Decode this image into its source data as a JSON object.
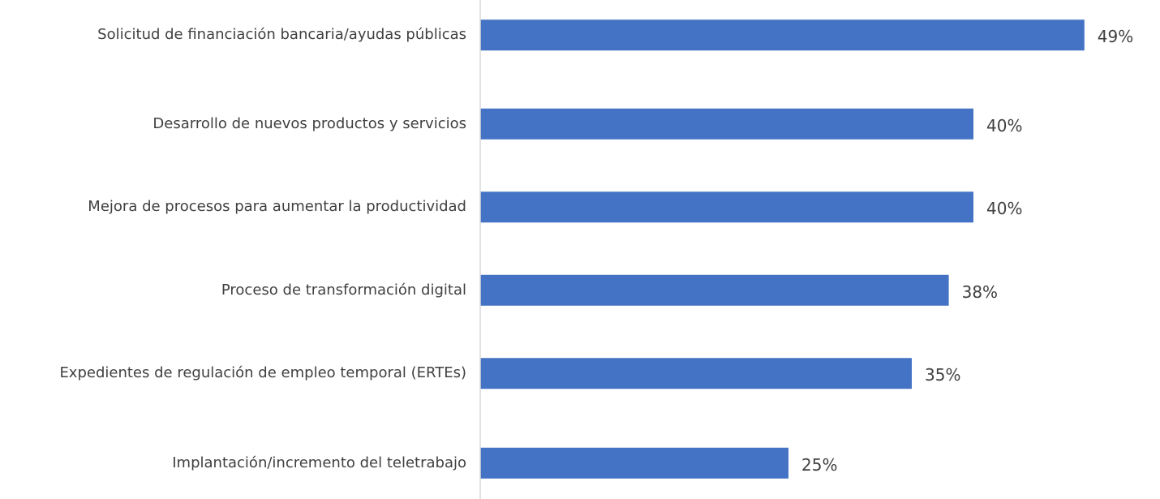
{
  "chart_data": {
    "type": "bar",
    "orientation": "horizontal",
    "categories": [
      "Solicitud de financiación bancaria/ayudas públicas",
      "Desarrollo de nuevos productos y servicios",
      "Mejora de procesos para aumentar la productividad",
      "Proceso de transformación digital",
      "Expedientes de regulación de empleo temporal (ERTEs)",
      "Implantación/incremento del teletrabajo"
    ],
    "values": [
      49,
      40,
      40,
      38,
      35,
      25
    ],
    "value_labels": [
      "49%",
      "40%",
      "40%",
      "38%",
      "35%",
      "25%"
    ],
    "color": "#4472c4",
    "xlim": [
      0,
      55
    ]
  }
}
